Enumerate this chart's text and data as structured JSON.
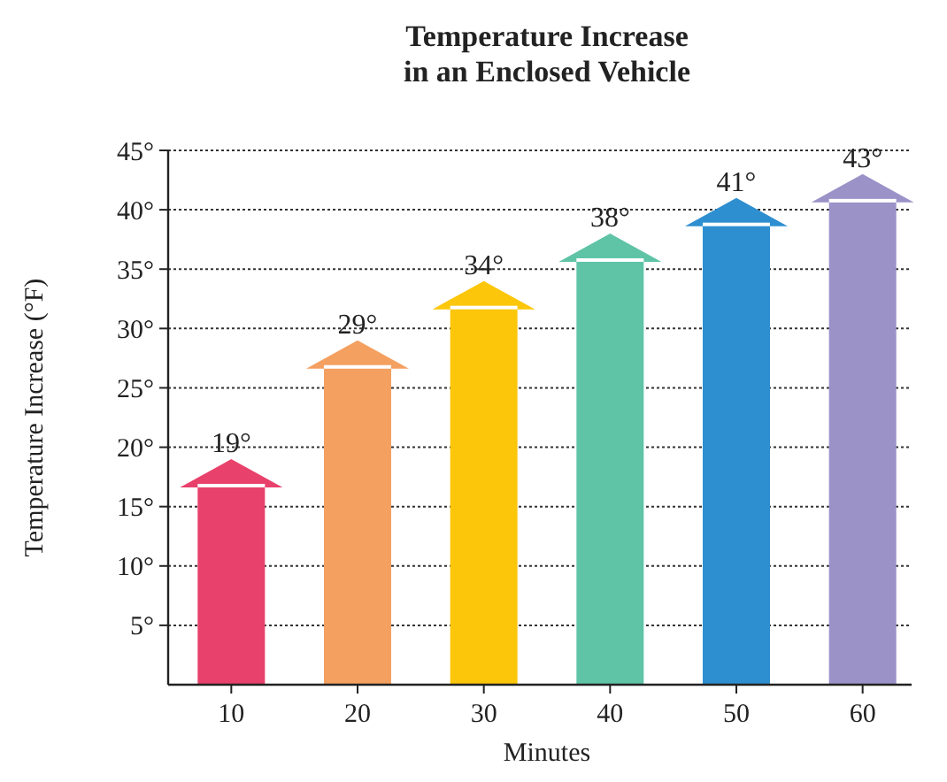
{
  "chart_data": {
    "type": "bar",
    "title": "Temperature Increase\nin an Enclosed Vehicle",
    "xlabel": "Minutes",
    "ylabel": "Temperature Increase (°F)",
    "categories": [
      "10",
      "20",
      "30",
      "40",
      "50",
      "60"
    ],
    "values": [
      19,
      29,
      34,
      38,
      41,
      43
    ],
    "value_labels": [
      "19°",
      "29°",
      "34°",
      "38°",
      "41°",
      "43°"
    ],
    "colors": [
      "#e8416b",
      "#f4a060",
      "#fcc60a",
      "#5fc3a6",
      "#2e8fd0",
      "#9b92c8"
    ],
    "ylim": [
      0,
      45
    ],
    "yticks": [
      {
        "value": 5,
        "label": "5°"
      },
      {
        "value": 10,
        "label": "10°"
      },
      {
        "value": 15,
        "label": "15°"
      },
      {
        "value": 20,
        "label": "20°"
      },
      {
        "value": 25,
        "label": "25°"
      },
      {
        "value": 30,
        "label": "30°"
      },
      {
        "value": 35,
        "label": "35°"
      },
      {
        "value": 40,
        "label": "40°"
      },
      {
        "value": 45,
        "label": "45°"
      }
    ],
    "grid": "y"
  }
}
